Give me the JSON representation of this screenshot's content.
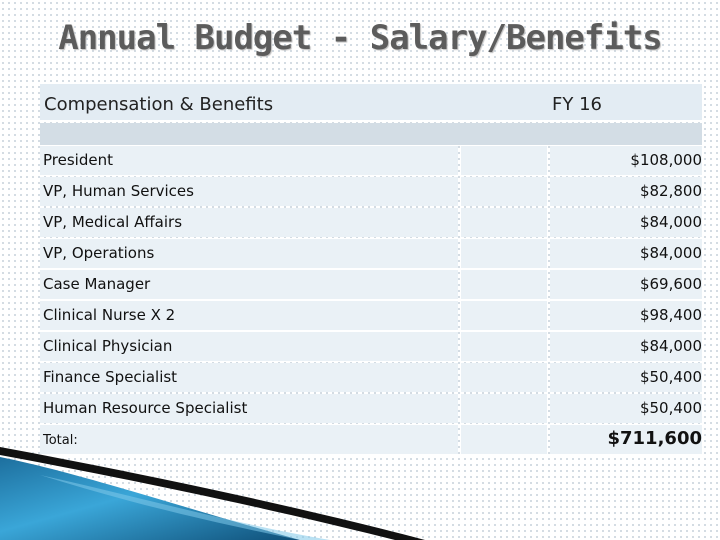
{
  "slide": {
    "title": "Annual Budget - Salary/Benefits"
  },
  "table": {
    "header_label": "Compensation & Benefits",
    "header_fy": "FY 16",
    "rows": [
      {
        "label": "President",
        "value": "$108,000"
      },
      {
        "label": "VP, Human Services",
        "value": "$82,800"
      },
      {
        "label": "VP, Medical Affairs",
        "value": "$84,000"
      },
      {
        "label": "VP, Operations",
        "value": "$84,000"
      },
      {
        "label": "Case Manager",
        "value": "$69,600"
      },
      {
        "label": "Clinical Nurse X 2",
        "value": "$98,400"
      },
      {
        "label": "Clinical Physician",
        "value": "$84,000"
      },
      {
        "label": "Finance Specialist",
        "value": "$50,400"
      },
      {
        "label": "Human Resource Specialist",
        "value": "$50,400"
      }
    ],
    "total_label": "Total:",
    "total_value": "$711,600"
  },
  "colors": {
    "header_fill": "#e3ecf3",
    "spacer_fill": "#d3dde5",
    "cell_fill": "#eaf1f6",
    "title_color": "#5c5c5c",
    "swoosh_blue": "#2a8fc0"
  }
}
